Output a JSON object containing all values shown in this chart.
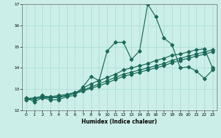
{
  "title": "",
  "xlabel": "Humidex (Indice chaleur)",
  "bg_color": "#cceee8",
  "grid_color": "#aaddd8",
  "line_color": "#1a6b5a",
  "marker": "D",
  "x": [
    0,
    1,
    2,
    3,
    4,
    5,
    6,
    7,
    8,
    9,
    10,
    11,
    12,
    13,
    14,
    15,
    16,
    17,
    18,
    19,
    20,
    21,
    22,
    23
  ],
  "series1": [
    12.6,
    12.4,
    12.6,
    12.5,
    12.5,
    12.65,
    12.7,
    13.1,
    13.6,
    13.4,
    14.8,
    15.2,
    15.2,
    14.4,
    14.8,
    17.0,
    16.4,
    15.4,
    15.1,
    14.0,
    14.05,
    13.85,
    13.5,
    13.9
  ],
  "series2": [
    12.6,
    12.5,
    12.7,
    12.6,
    12.6,
    12.7,
    12.8,
    13.05,
    13.25,
    13.4,
    13.55,
    13.7,
    13.9,
    14.0,
    14.1,
    14.2,
    14.35,
    14.45,
    14.6,
    14.65,
    14.75,
    14.85,
    14.9,
    14.0
  ],
  "series3": [
    12.55,
    12.6,
    12.65,
    12.65,
    12.7,
    12.75,
    12.85,
    12.95,
    13.1,
    13.25,
    13.4,
    13.55,
    13.7,
    13.8,
    13.9,
    14.0,
    14.1,
    14.2,
    14.35,
    14.45,
    14.55,
    14.65,
    14.75,
    14.85
  ],
  "series4": [
    12.5,
    12.55,
    12.6,
    12.6,
    12.65,
    12.7,
    12.8,
    12.9,
    13.05,
    13.15,
    13.3,
    13.45,
    13.6,
    13.7,
    13.8,
    13.9,
    14.0,
    14.1,
    14.25,
    14.35,
    14.45,
    14.55,
    14.65,
    14.75
  ],
  "ylim": [
    12,
    17
  ],
  "xlim": [
    -0.5,
    23.5
  ],
  "yticks": [
    12,
    13,
    14,
    15,
    16,
    17
  ],
  "xticks": [
    0,
    1,
    2,
    3,
    4,
    5,
    6,
    7,
    8,
    9,
    10,
    11,
    12,
    13,
    14,
    15,
    16,
    17,
    18,
    19,
    20,
    21,
    22,
    23
  ]
}
